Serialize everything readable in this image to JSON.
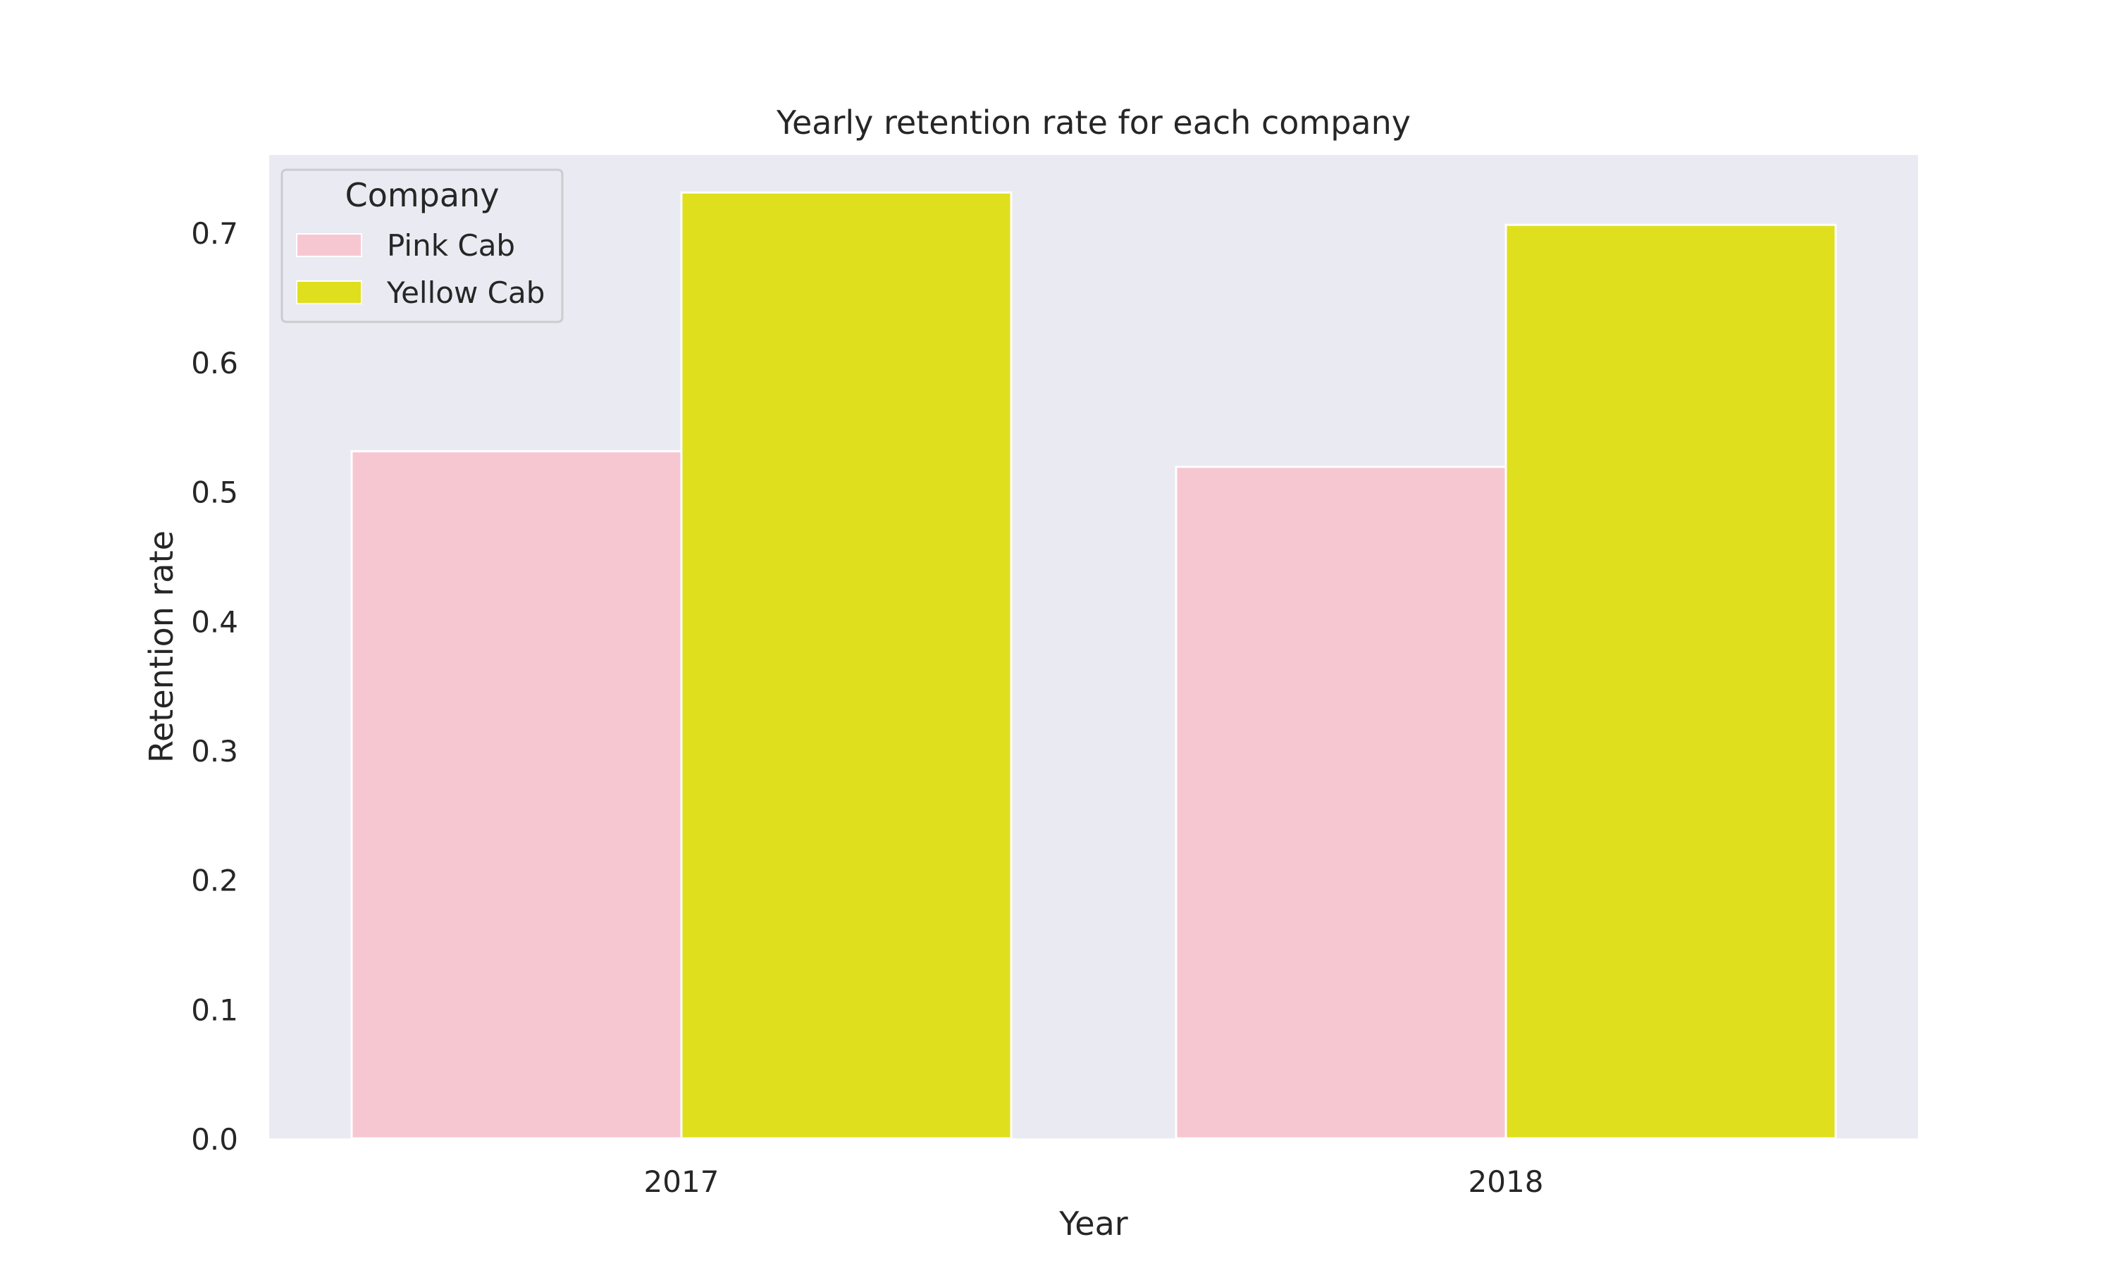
{
  "chart_data": {
    "type": "bar",
    "title": "Yearly retention rate for each company",
    "xlabel": "Year",
    "ylabel": "Retention rate",
    "categories": [
      "2017",
      "2018"
    ],
    "series": [
      {
        "name": "Pink Cab",
        "values": [
          0.531,
          0.519
        ]
      },
      {
        "name": "Yellow Cab",
        "values": [
          0.731,
          0.706
        ]
      }
    ],
    "ylim": [
      0,
      0.76
    ],
    "yticks": [
      "0.0",
      "0.1",
      "0.2",
      "0.3",
      "0.4",
      "0.5",
      "0.6",
      "0.7"
    ],
    "grid": false,
    "legend": {
      "title": "Company",
      "placement": "top-left"
    },
    "colors": {
      "Pink Cab": "#f7c7d1",
      "Yellow Cab": "#dfdf1e",
      "plot_background": "#eaeaf2"
    }
  }
}
